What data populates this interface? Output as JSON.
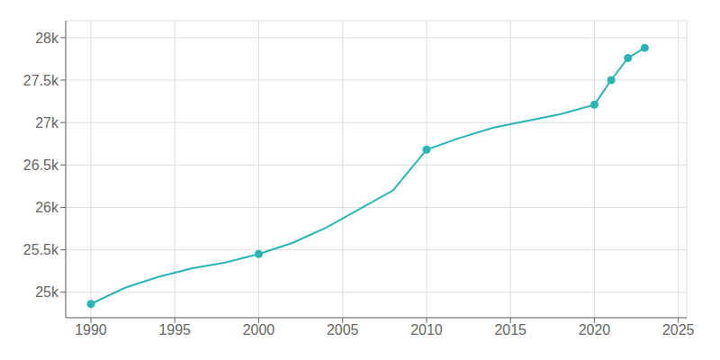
{
  "chart_data": {
    "type": "line",
    "xlim": [
      1988.5,
      2025.5
    ],
    "xticks": [
      1990,
      1995,
      2000,
      2005,
      2010,
      2015,
      2020,
      2025
    ],
    "ylim": [
      24700,
      28200
    ],
    "yticks": [
      {
        "value": 25000,
        "label": "25k"
      },
      {
        "value": 25500,
        "label": "25.5k"
      },
      {
        "value": 26000,
        "label": "26k"
      },
      {
        "value": 26500,
        "label": "26.5k"
      },
      {
        "value": 27000,
        "label": "27k"
      },
      {
        "value": 27500,
        "label": "27.5k"
      },
      {
        "value": 28000,
        "label": "28k"
      }
    ],
    "grid": true,
    "series": [
      {
        "type": "line",
        "color": "#2ab5b5",
        "x": [
          1990,
          1992,
          1994,
          1996,
          1998,
          2000,
          2002,
          2004,
          2006,
          2008,
          2010,
          2012,
          2014,
          2016,
          2018,
          2020,
          2021,
          2022,
          2023
        ],
        "values": [
          24862,
          25050,
          25180,
          25280,
          25350,
          25450,
          25580,
          25760,
          25980,
          26200,
          26680,
          26820,
          26940,
          27020,
          27100,
          27210,
          27500,
          27760,
          27880
        ]
      },
      {
        "type": "scatter",
        "marker": "circle",
        "color": "#2ab5b5",
        "x": [
          1990,
          2000,
          2010,
          2020,
          2021,
          2022,
          2023
        ],
        "values": [
          24862,
          25450,
          26680,
          27210,
          27500,
          27760,
          27880
        ]
      }
    ]
  }
}
